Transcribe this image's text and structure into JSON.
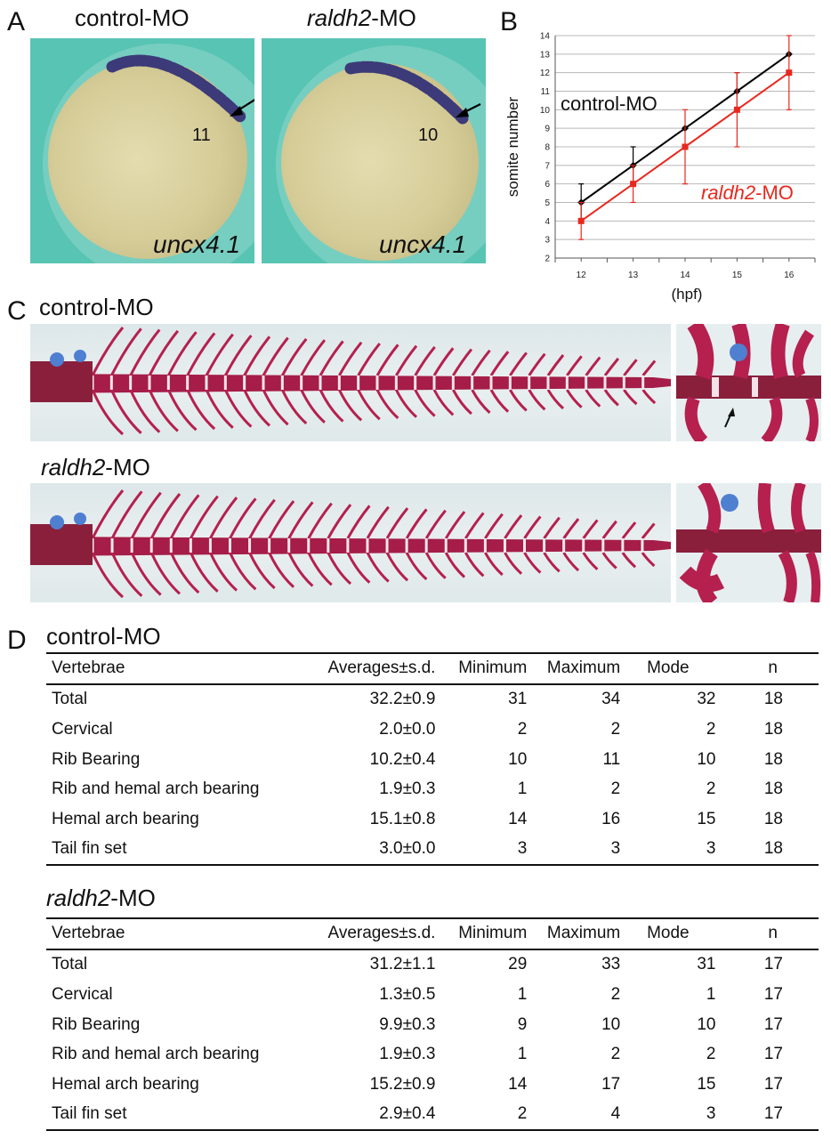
{
  "panels": {
    "a": {
      "letter": "A",
      "left": {
        "title": "control-MO",
        "somite_count": "11",
        "gene": "uncx4.1"
      },
      "right": {
        "title_italic": "raldh2",
        "title_rest": "-MO",
        "somite_count": "10",
        "gene": "uncx4.1"
      }
    },
    "b": {
      "letter": "B"
    },
    "c": {
      "letter": "C",
      "control_label": "control-MO",
      "raldh2_label_italic": "raldh2",
      "raldh2_label_rest": "-MO"
    },
    "d": {
      "letter": "D"
    }
  },
  "chart_data": {
    "type": "line",
    "xlabel": "(hpf)",
    "ylabel": "somite number",
    "x": [
      12,
      13,
      14,
      15,
      16
    ],
    "xlim": [
      11.5,
      16.5
    ],
    "ylim": [
      2,
      14
    ],
    "yticks": [
      2,
      3,
      4,
      5,
      6,
      7,
      8,
      9,
      10,
      11,
      12,
      13,
      14
    ],
    "grid": true,
    "series": [
      {
        "name": "control-MO",
        "color": "#000000",
        "marker": "diamond",
        "values": [
          5,
          7,
          9,
          11,
          13
        ],
        "err": [
          1,
          1,
          0,
          1,
          0
        ]
      },
      {
        "name_italic": "raldh2",
        "name_rest": "-MO",
        "color": "#e8281e",
        "marker": "square",
        "values": [
          4,
          6,
          8,
          10,
          12
        ],
        "err": [
          1,
          1,
          2,
          2,
          2
        ]
      }
    ]
  },
  "tables": [
    {
      "title": "control-MO",
      "title_italic": "",
      "headers": [
        "Vertebrae",
        "Averages±s.d.",
        "Minimum",
        "Maximum",
        "Mode",
        "n"
      ],
      "rows": [
        [
          "Total",
          "32.2±0.9",
          "31",
          "34",
          "32",
          "18"
        ],
        [
          "Cervical",
          "2.0±0.0",
          "2",
          "2",
          "2",
          "18"
        ],
        [
          "Rib Bearing",
          "10.2±0.4",
          "10",
          "11",
          "10",
          "18"
        ],
        [
          "Rib and hemal arch bearing",
          "1.9±0.3",
          "1",
          "2",
          "2",
          "18"
        ],
        [
          "Hemal arch bearing",
          "15.1±0.8",
          "14",
          "16",
          "15",
          "18"
        ],
        [
          "Tail fin set",
          "3.0±0.0",
          "3",
          "3",
          "3",
          "18"
        ]
      ]
    },
    {
      "title": "-MO",
      "title_italic": "raldh2",
      "headers": [
        "Vertebrae",
        "Averages±s.d.",
        "Minimum",
        "Maximum",
        "Mode",
        "n"
      ],
      "rows": [
        [
          "Total",
          "31.2±1.1",
          "29",
          "33",
          "31",
          "17"
        ],
        [
          "Cervical",
          "1.3±0.5",
          "1",
          "2",
          "1",
          "17"
        ],
        [
          "Rib Bearing",
          "9.9±0.3",
          "9",
          "10",
          "10",
          "17"
        ],
        [
          "Rib and hemal arch bearing",
          "1.9±0.3",
          "1",
          "2",
          "2",
          "17"
        ],
        [
          "Hemal arch bearing",
          "15.2±0.9",
          "14",
          "17",
          "15",
          "17"
        ],
        [
          "Tail fin set",
          "2.9±0.4",
          "2",
          "4",
          "3",
          "17"
        ]
      ]
    }
  ],
  "colors": {
    "stain": "#b5204e",
    "background_teal": "#58c4b3",
    "red_series": "#e8281e"
  }
}
